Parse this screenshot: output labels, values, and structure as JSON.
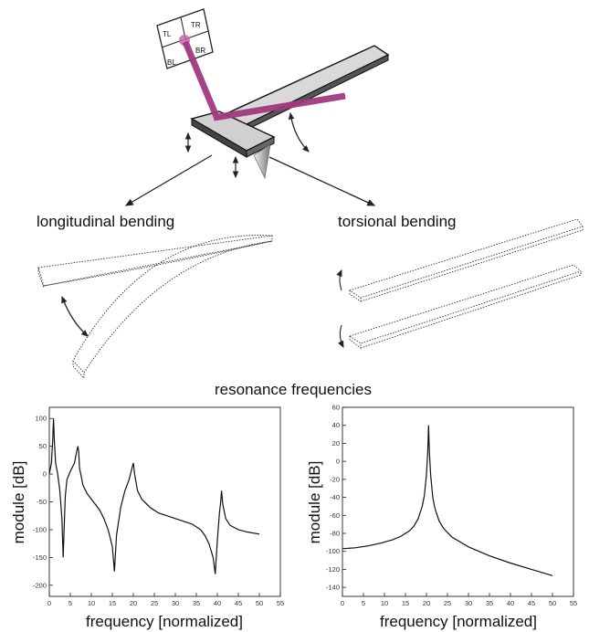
{
  "diagram": {
    "photodiode_quadrants": [
      "TL",
      "TR",
      "BL",
      "BR"
    ],
    "longitudinal_label": "longitudinal bending",
    "torsional_label": "torsional bending",
    "resonance_label": "resonance frequencies",
    "laser_color": "#a0397f",
    "cantilever_color": "#d9d9d9"
  },
  "chart_data": [
    {
      "type": "line",
      "title": "",
      "xlabel": "frequency [normalized]",
      "ylabel": "module [dB]",
      "xlim": [
        0,
        55
      ],
      "ylim": [
        -220,
        120
      ],
      "xticks": [
        "0",
        "5",
        "10",
        "15",
        "20",
        "25",
        "30",
        "35",
        "40",
        "45",
        "50",
        "55"
      ],
      "yticks": [
        "100",
        "50",
        "0",
        "-50",
        "-100",
        "-150",
        "-200"
      ],
      "series": [
        {
          "x": [
            0,
            0.5,
            0.8,
            1.0,
            1.2,
            1.5,
            2.0,
            2.5,
            3.0,
            3.3,
            3.6,
            3.8,
            4.2,
            5.0,
            6.0,
            6.5,
            6.8,
            7.0,
            7.2,
            7.5,
            8,
            9,
            10,
            11,
            12,
            13,
            14,
            15,
            15.5,
            16,
            17,
            18,
            19,
            19.5,
            20,
            20.3,
            21,
            22,
            24,
            26,
            28,
            30,
            32,
            34,
            36,
            37,
            38,
            39,
            39.5,
            40,
            40.5,
            40.8,
            41,
            41.3,
            42,
            43,
            45,
            47,
            50
          ],
          "values": [
            0,
            20,
            60,
            100,
            60,
            20,
            0,
            -30,
            -80,
            -150,
            -80,
            -40,
            -10,
            5,
            20,
            40,
            50,
            40,
            10,
            0,
            -20,
            -35,
            -45,
            -55,
            -65,
            -80,
            -100,
            -130,
            -175,
            -110,
            -60,
            -30,
            -10,
            5,
            20,
            0,
            -30,
            -45,
            -60,
            -70,
            -75,
            -80,
            -85,
            -90,
            -100,
            -110,
            -125,
            -150,
            -180,
            -120,
            -70,
            -50,
            -30,
            -55,
            -80,
            -92,
            -100,
            -104,
            -108
          ]
        }
      ]
    },
    {
      "type": "line",
      "title": "",
      "xlabel": "frequency [normalized]",
      "ylabel": "module [dB]",
      "xlim": [
        0,
        55
      ],
      "ylim": [
        -150,
        60
      ],
      "xticks": [
        "0",
        "5",
        "10",
        "15",
        "20",
        "25",
        "30",
        "35",
        "40",
        "45",
        "50",
        "55"
      ],
      "yticks": [
        "60",
        "40",
        "20",
        "0",
        "-20",
        "-40",
        "-60",
        "-80",
        "-100",
        "-120",
        "-140"
      ],
      "series": [
        {
          "x": [
            0,
            3,
            6,
            9,
            12,
            14,
            16,
            17,
            18,
            19,
            19.5,
            20,
            20.3,
            20.5,
            20.7,
            21,
            21.5,
            22,
            23,
            24,
            26,
            30,
            35,
            40,
            45,
            50
          ],
          "values": [
            -97,
            -96,
            -94,
            -91,
            -87,
            -83,
            -77,
            -72,
            -64,
            -50,
            -38,
            -15,
            10,
            40,
            10,
            -15,
            -40,
            -52,
            -66,
            -74,
            -84,
            -95,
            -105,
            -113,
            -120,
            -127
          ]
        }
      ]
    }
  ]
}
